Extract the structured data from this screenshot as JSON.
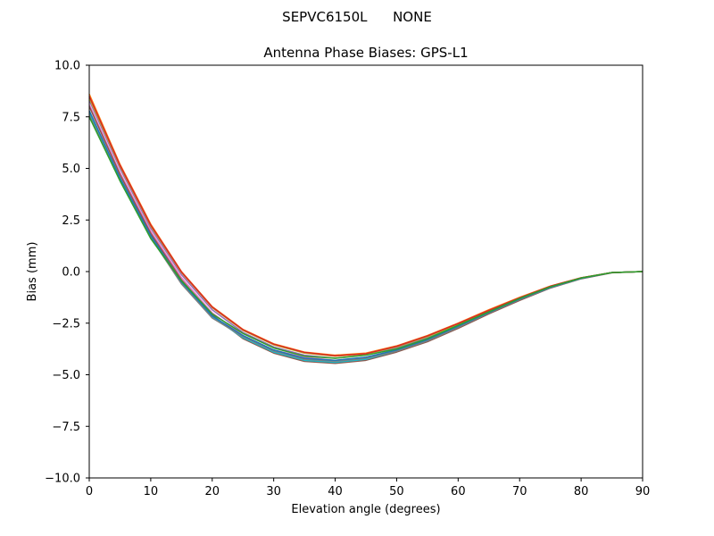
{
  "chart_data": {
    "type": "line",
    "suptitle": "SEPVC6150L      NONE",
    "title": "Antenna Phase Biases: GPS-L1",
    "xlabel": "Elevation angle (degrees)",
    "ylabel": "Bias (mm)",
    "xlim": [
      0,
      90
    ],
    "ylim": [
      -10,
      10
    ],
    "xticks": [
      0,
      10,
      20,
      30,
      40,
      50,
      60,
      70,
      80,
      90
    ],
    "yticks": [
      -10,
      -7.5,
      -5,
      -2.5,
      0,
      2.5,
      5,
      7.5,
      10
    ],
    "ytick_labels": [
      "−10.0",
      "−7.5",
      "−5.0",
      "−2.5",
      "0.0",
      "2.5",
      "5.0",
      "7.5",
      "10.0"
    ],
    "grid": false,
    "x": [
      0,
      5,
      10,
      15,
      20,
      25,
      30,
      35,
      40,
      45,
      50,
      55,
      60,
      65,
      70,
      75,
      80,
      85,
      90
    ],
    "series": [
      {
        "color": "#ff7f0e",
        "values": [
          8.6,
          5.2,
          2.3,
          0.0,
          -1.7,
          -2.8,
          -3.5,
          -3.9,
          -4.05,
          -3.95,
          -3.6,
          -3.1,
          -2.5,
          -1.85,
          -1.25,
          -0.7,
          -0.3,
          -0.05,
          0.0
        ]
      },
      {
        "color": "#9467bd",
        "values": [
          8.3,
          5.0,
          2.1,
          -0.15,
          -1.85,
          -2.95,
          -3.65,
          -4.05,
          -4.2,
          -4.05,
          -3.7,
          -3.2,
          -2.6,
          -1.95,
          -1.3,
          -0.75,
          -0.3,
          -0.05,
          0.0
        ]
      },
      {
        "color": "#e377c2",
        "values": [
          8.1,
          4.8,
          1.95,
          -0.3,
          -2.0,
          -3.1,
          -3.8,
          -4.15,
          -4.3,
          -4.15,
          -3.8,
          -3.3,
          -2.65,
          -2.0,
          -1.35,
          -0.75,
          -0.32,
          -0.05,
          0.0
        ]
      },
      {
        "color": "#8c564b",
        "values": [
          8.0,
          4.7,
          1.85,
          -0.4,
          -2.1,
          -3.25,
          -3.95,
          -4.35,
          -4.45,
          -4.3,
          -3.9,
          -3.4,
          -2.75,
          -2.05,
          -1.4,
          -0.8,
          -0.35,
          -0.06,
          0.0
        ]
      },
      {
        "color": "#17becf",
        "values": [
          7.7,
          4.5,
          1.7,
          -0.55,
          -2.2,
          -3.2,
          -3.9,
          -4.3,
          -4.4,
          -4.25,
          -3.85,
          -3.35,
          -2.7,
          -2.0,
          -1.35,
          -0.78,
          -0.33,
          -0.05,
          0.0
        ]
      },
      {
        "color": "#7f7f7f",
        "values": [
          7.6,
          4.4,
          1.65,
          -0.6,
          -2.25,
          -3.15,
          -3.85,
          -4.25,
          -4.35,
          -4.2,
          -3.85,
          -3.35,
          -2.7,
          -2.0,
          -1.35,
          -0.78,
          -0.32,
          -0.05,
          0.0
        ]
      },
      {
        "color": "#bcbd22",
        "values": [
          8.4,
          5.1,
          2.2,
          -0.05,
          -1.75,
          -2.85,
          -3.55,
          -3.95,
          -4.1,
          -4.0,
          -3.65,
          -3.15,
          -2.55,
          -1.9,
          -1.28,
          -0.72,
          -0.3,
          -0.05,
          0.0
        ]
      },
      {
        "color": "#1f77b4",
        "values": [
          7.8,
          4.55,
          1.75,
          -0.5,
          -2.15,
          -3.1,
          -3.8,
          -4.2,
          -4.3,
          -4.15,
          -3.8,
          -3.3,
          -2.65,
          -1.98,
          -1.33,
          -0.76,
          -0.32,
          -0.05,
          0.0
        ]
      },
      {
        "color": "#d62728",
        "values": [
          8.5,
          5.15,
          2.25,
          -0.02,
          -1.72,
          -2.82,
          -3.52,
          -3.92,
          -4.08,
          -3.98,
          -3.62,
          -3.12,
          -2.52,
          -1.88,
          -1.27,
          -0.71,
          -0.3,
          -0.05,
          0.0
        ]
      },
      {
        "color": "#2ca02c",
        "values": [
          7.5,
          4.4,
          1.6,
          -0.45,
          -2.05,
          -3.0,
          -3.7,
          -4.1,
          -4.2,
          -4.05,
          -3.75,
          -3.25,
          -2.6,
          -1.95,
          -1.3,
          -0.74,
          -0.31,
          -0.05,
          0.0
        ]
      }
    ]
  }
}
